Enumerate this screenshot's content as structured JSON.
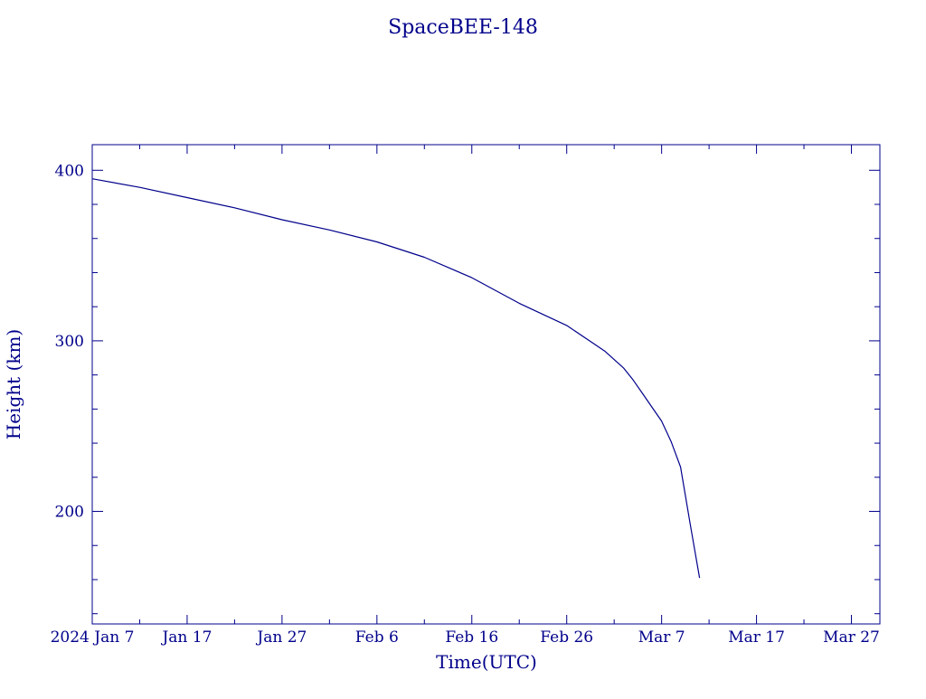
{
  "chart_data": {
    "type": "line",
    "title": "SpaceBEE-148",
    "xlabel": "Time(UTC)",
    "ylabel": "Height (km)",
    "x_type": "date",
    "xlim": [
      "2024-01-07",
      "2024-03-30"
    ],
    "ylim": [
      134,
      415
    ],
    "x_ticks": [
      {
        "date": "2024-01-07",
        "label": "2024 Jan  7"
      },
      {
        "date": "2024-01-17",
        "label": "Jan 17"
      },
      {
        "date": "2024-01-27",
        "label": "Jan 27"
      },
      {
        "date": "2024-02-06",
        "label": "Feb  6"
      },
      {
        "date": "2024-02-16",
        "label": "Feb 16"
      },
      {
        "date": "2024-02-26",
        "label": "Feb 26"
      },
      {
        "date": "2024-03-07",
        "label": "Mar  7"
      },
      {
        "date": "2024-03-17",
        "label": "Mar 17"
      },
      {
        "date": "2024-03-27",
        "label": "Mar 27"
      }
    ],
    "y_ticks": [
      {
        "value": 200,
        "label": "200"
      },
      {
        "value": 300,
        "label": "300"
      },
      {
        "value": 400,
        "label": "400"
      }
    ],
    "grid": false,
    "legend": "none",
    "color": "#00008b",
    "series": [
      {
        "x": [
          "2024-01-07",
          "2024-01-12",
          "2024-01-17",
          "2024-01-22",
          "2024-01-27",
          "2024-02-01",
          "2024-02-06",
          "2024-02-11",
          "2024-02-16",
          "2024-02-21",
          "2024-02-26",
          "2024-03-01",
          "2024-03-03",
          "2024-03-04",
          "2024-03-05",
          "2024-03-06",
          "2024-03-07",
          "2024-03-08",
          "2024-03-09",
          "2024-03-10",
          "2024-03-11"
        ],
        "y": [
          395,
          390,
          384,
          378,
          371,
          365,
          358,
          349,
          337,
          322,
          309,
          294,
          284,
          277,
          269,
          261,
          253,
          241,
          226,
          193,
          161
        ]
      }
    ]
  }
}
